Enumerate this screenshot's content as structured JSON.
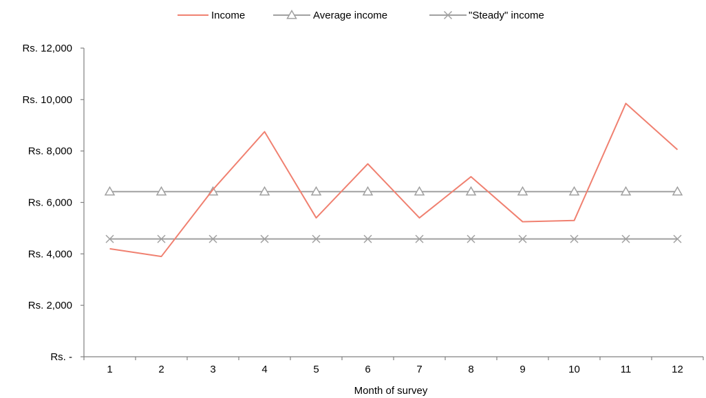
{
  "chart_data": {
    "type": "line",
    "xlabel": "Month of survey",
    "ylabel": "",
    "x": [
      "1",
      "2",
      "3",
      "4",
      "5",
      "6",
      "7",
      "8",
      "9",
      "10",
      "11",
      "12"
    ],
    "ylim": [
      0,
      12000
    ],
    "yticks": [
      0,
      2000,
      4000,
      6000,
      8000,
      10000,
      12000
    ],
    "ytick_labels": [
      "Rs. -",
      "Rs. 2,000",
      "Rs. 4,000",
      "Rs. 6,000",
      "Rs. 8,000",
      "Rs. 10,000",
      "Rs. 12,000"
    ],
    "grid": false,
    "legend_position": "top-center",
    "series": [
      {
        "name": "Income",
        "color": "#F08070",
        "marker": "none",
        "values": [
          4200,
          3900,
          6500,
          8750,
          5400,
          7500,
          5400,
          7000,
          5250,
          5300,
          9850,
          8050
        ]
      },
      {
        "name": "Average income",
        "color": "#A0A0A0",
        "marker": "triangle",
        "values": [
          6420,
          6420,
          6420,
          6420,
          6420,
          6420,
          6420,
          6420,
          6420,
          6420,
          6420,
          6420
        ]
      },
      {
        "name": "\"Steady\" income",
        "color": "#A0A0A0",
        "marker": "x",
        "values": [
          4580,
          4580,
          4580,
          4580,
          4580,
          4580,
          4580,
          4580,
          4580,
          4580,
          4580,
          4580
        ]
      }
    ]
  }
}
